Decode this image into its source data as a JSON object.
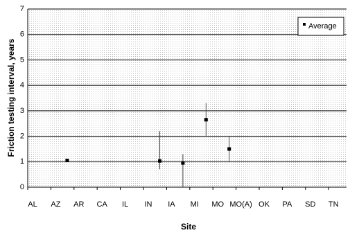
{
  "chart_data": {
    "type": "errorbar",
    "x_label": "Site",
    "y_label": "Friction testing interval, years",
    "categories": [
      "AL",
      "AZ",
      "AR",
      "CA",
      "IL",
      "IN",
      "IA",
      "MI",
      "MO",
      "MO(A)",
      "OK",
      "PA",
      "SD",
      "TN"
    ],
    "series": [
      {
        "name": "Average",
        "color": "#000000",
        "values": [
          null,
          1.05,
          null,
          null,
          null,
          1.03,
          0.95,
          2.65,
          1.5,
          null,
          null,
          null,
          null,
          null
        ],
        "low": [
          null,
          null,
          null,
          null,
          null,
          0.7,
          0,
          2.0,
          1.0,
          null,
          null,
          null,
          null,
          null
        ],
        "high": [
          null,
          null,
          null,
          null,
          null,
          2.2,
          1.3,
          3.3,
          2.0,
          null,
          null,
          null,
          null,
          null
        ]
      }
    ],
    "ylim": [
      0,
      7
    ],
    "yticks": [
      0,
      1,
      2,
      3,
      4,
      5,
      6,
      7
    ],
    "grid": true,
    "legend": "upper right"
  }
}
